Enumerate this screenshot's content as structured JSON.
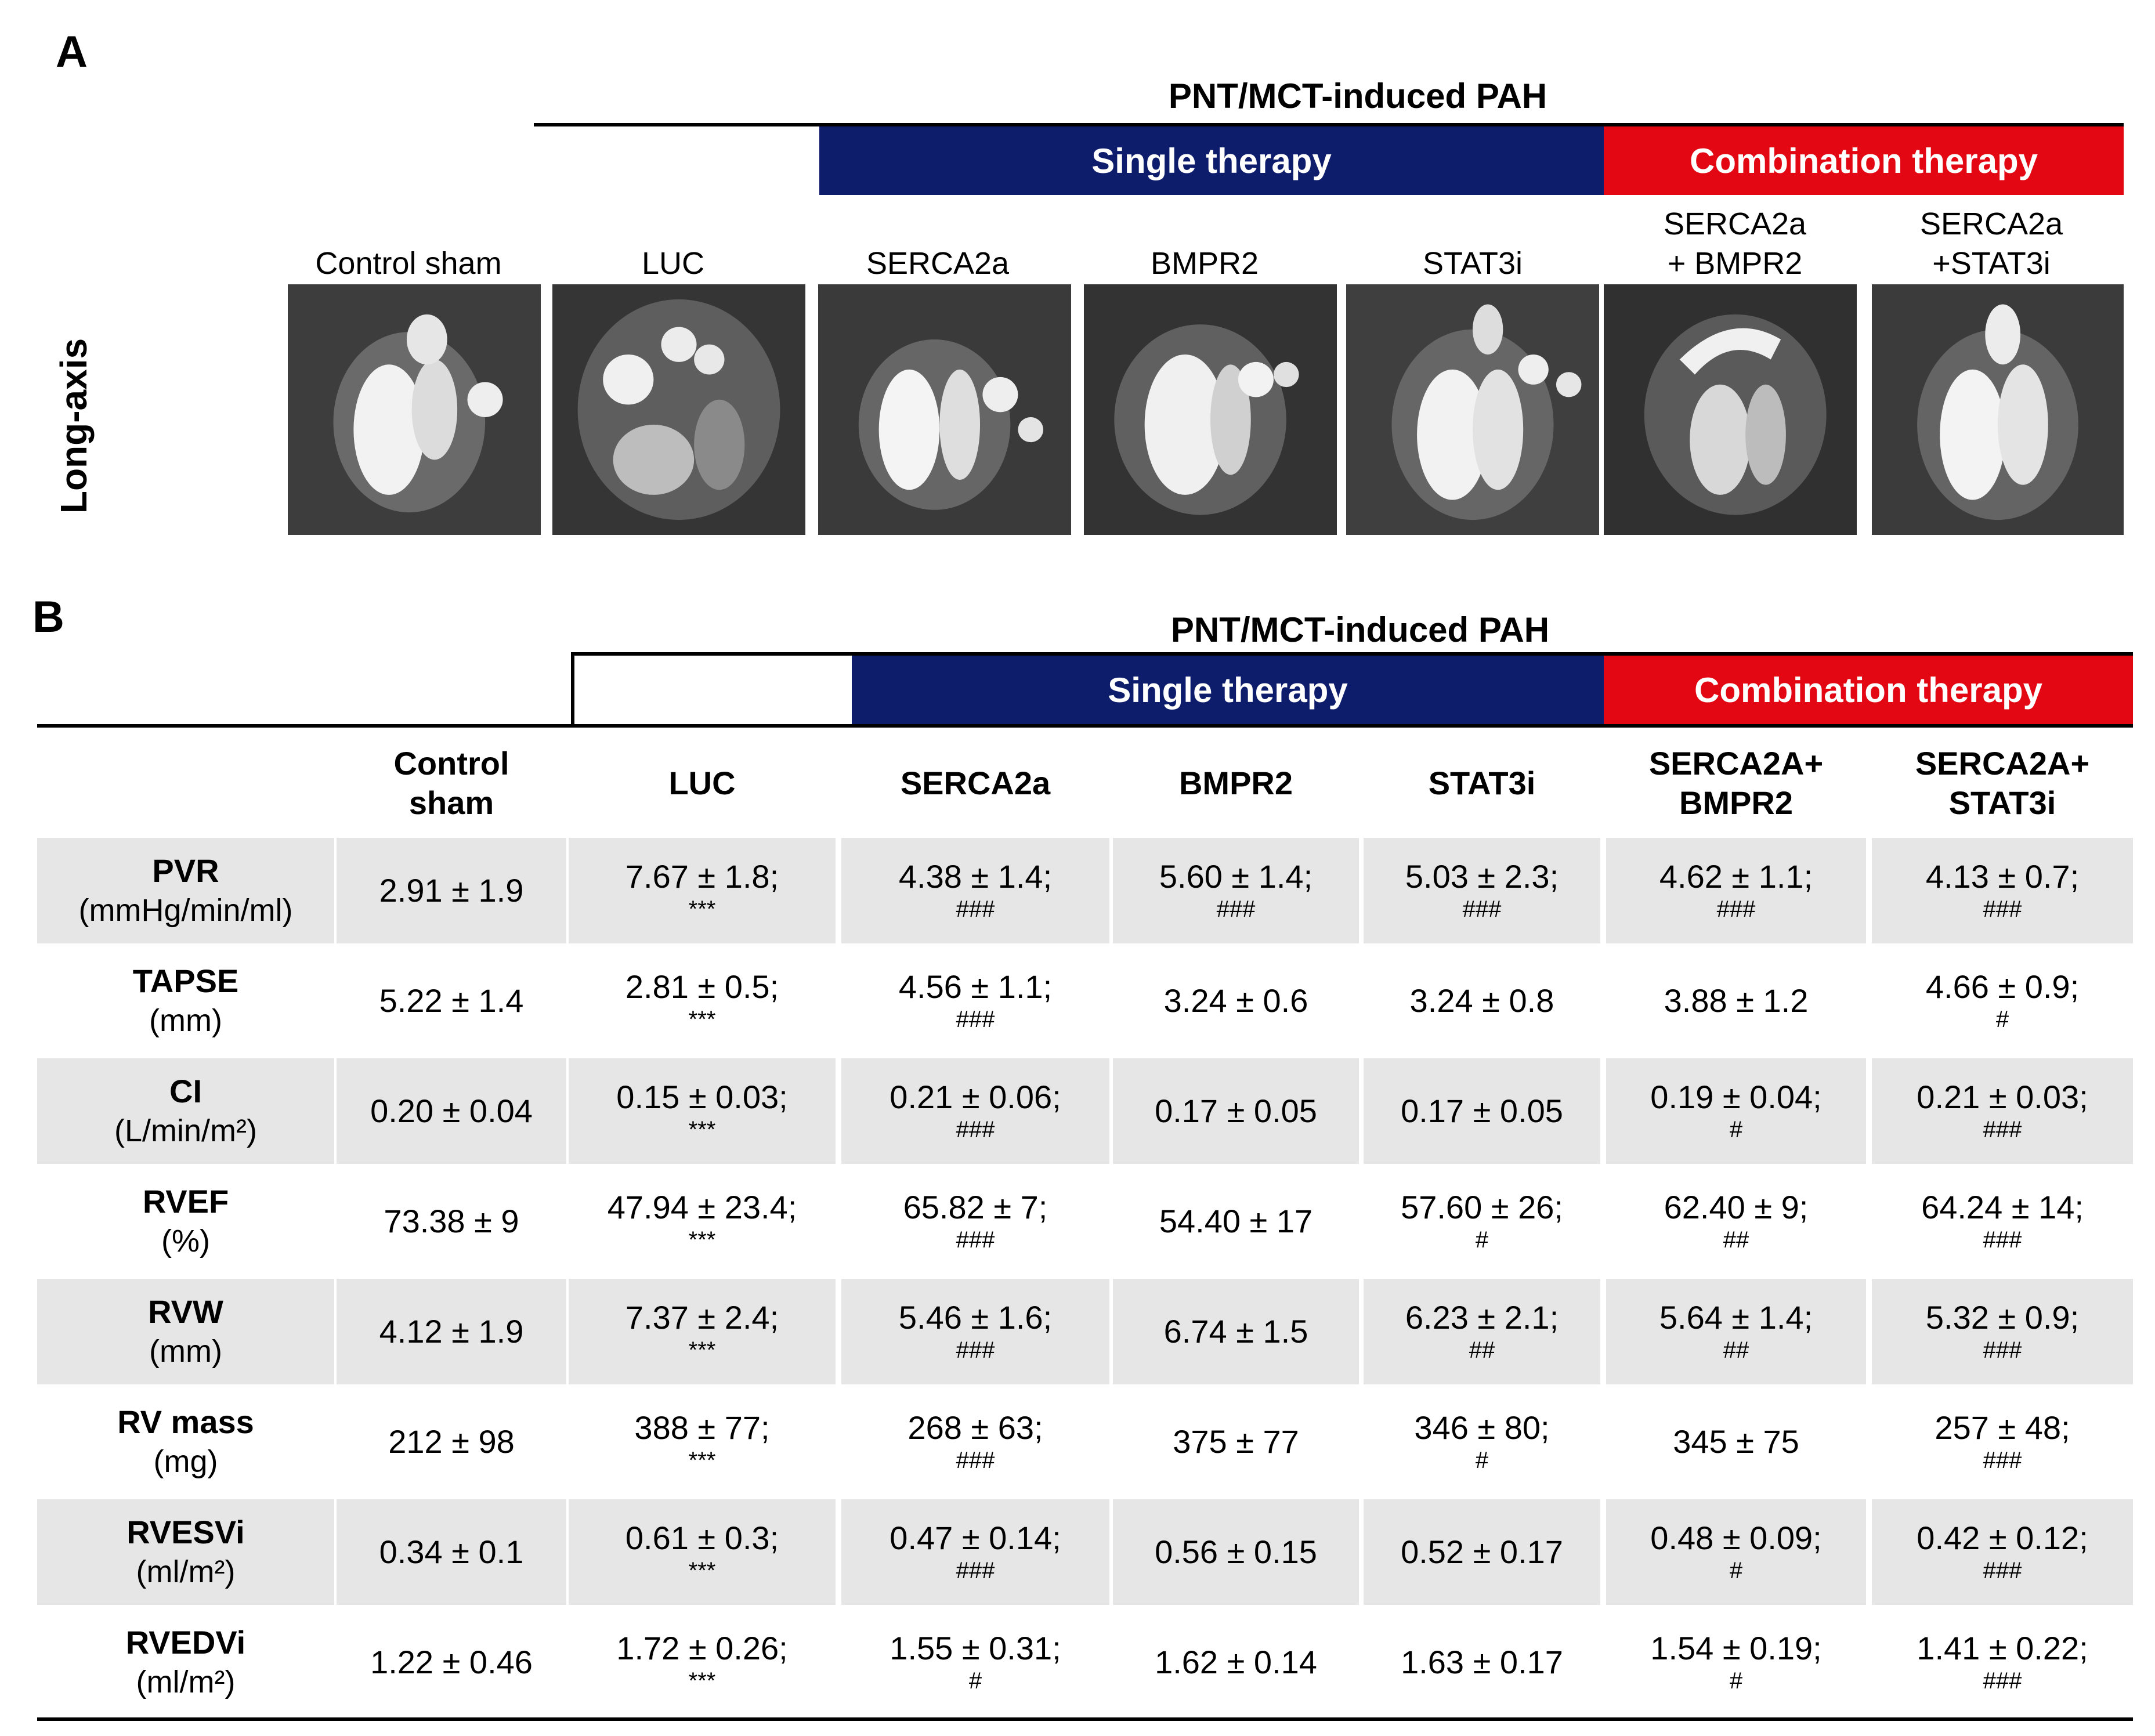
{
  "panel_a": {
    "letter": "A",
    "group_title": "PNT/MCT-induced PAH",
    "single_label": "Single therapy",
    "combo_label": "Combination therapy",
    "side_label": "Long-axis",
    "images": [
      {
        "label1": "",
        "label2": "Control sham"
      },
      {
        "label1": "",
        "label2": "LUC"
      },
      {
        "label1": "",
        "label2": "SERCA2a"
      },
      {
        "label1": "",
        "label2": "BMPR2"
      },
      {
        "label1": "",
        "label2": "STAT3i"
      },
      {
        "label1": "SERCA2a",
        "label2": "+ BMPR2"
      },
      {
        "label1": "SERCA2a",
        "label2": "+STAT3i"
      }
    ]
  },
  "panel_b": {
    "letter": "B",
    "group_title": "PNT/MCT-induced PAH",
    "single_label": "Single therapy",
    "combo_label": "Combination therapy",
    "columns": [
      {
        "line1": "Control",
        "line2": "sham"
      },
      {
        "line1": "LUC",
        "line2": ""
      },
      {
        "line1": "SERCA2a",
        "line2": ""
      },
      {
        "line1": "BMPR2",
        "line2": ""
      },
      {
        "line1": "STAT3i",
        "line2": ""
      },
      {
        "line1": "SERCA2A+",
        "line2": "BMPR2"
      },
      {
        "line1": "SERCA2A+",
        "line2": "STAT3i"
      }
    ],
    "rows": [
      {
        "name": "PVR",
        "unit": "(mmHg/min/ml)",
        "cells": [
          {
            "v": "2.91 ± 1.9",
            "s": ""
          },
          {
            "v": "7.67 ± 1.8;",
            "s": "***"
          },
          {
            "v": "4.38 ± 1.4;",
            "s": "###"
          },
          {
            "v": "5.60 ± 1.4;",
            "s": "###"
          },
          {
            "v": "5.03 ± 2.3;",
            "s": "###"
          },
          {
            "v": "4.62 ± 1.1;",
            "s": "###"
          },
          {
            "v": "4.13 ± 0.7;",
            "s": "###"
          }
        ]
      },
      {
        "name": "TAPSE",
        "unit": "(mm)",
        "cells": [
          {
            "v": "5.22 ± 1.4",
            "s": ""
          },
          {
            "v": "2.81 ± 0.5;",
            "s": "***"
          },
          {
            "v": "4.56 ± 1.1;",
            "s": "###"
          },
          {
            "v": "3.24 ± 0.6",
            "s": ""
          },
          {
            "v": "3.24 ± 0.8",
            "s": ""
          },
          {
            "v": "3.88 ±  1.2",
            "s": ""
          },
          {
            "v": "4.66 ± 0.9;",
            "s": "#"
          }
        ]
      },
      {
        "name": "CI",
        "unit": "(L/min/m²)",
        "cells": [
          {
            "v": "0.20 ± 0.04",
            "s": ""
          },
          {
            "v": "0.15 ± 0.03;",
            "s": "***"
          },
          {
            "v": "0.21 ± 0.06;",
            "s": "###"
          },
          {
            "v": "0.17 ± 0.05",
            "s": ""
          },
          {
            "v": "0.17 ± 0.05",
            "s": ""
          },
          {
            "v": "0.19 ± 0.04;",
            "s": "#"
          },
          {
            "v": "0.21 ± 0.03;",
            "s": "###"
          }
        ]
      },
      {
        "name": "RVEF",
        "unit": "(%)",
        "cells": [
          {
            "v": "73.38 ± 9",
            "s": ""
          },
          {
            "v": "47.94 ± 23.4;",
            "s": "***"
          },
          {
            "v": "65.82 ± 7;",
            "s": "###"
          },
          {
            "v": "54.40 ± 17",
            "s": ""
          },
          {
            "v": "57.60 ± 26;",
            "s": "#"
          },
          {
            "v": "62.40 ± 9;",
            "s": "##"
          },
          {
            "v": "64.24 ± 14;",
            "s": "###"
          }
        ]
      },
      {
        "name": "RVW",
        "unit": "(mm)",
        "cells": [
          {
            "v": "4.12 ± 1.9",
            "s": ""
          },
          {
            "v": "7.37 ± 2.4;",
            "s": "***"
          },
          {
            "v": "5.46 ± 1.6;",
            "s": "###"
          },
          {
            "v": "6.74 ± 1.5",
            "s": ""
          },
          {
            "v": "6.23 ± 2.1;",
            "s": "##"
          },
          {
            "v": "5.64 ± 1.4;",
            "s": "##"
          },
          {
            "v": "5.32 ± 0.9;",
            "s": "###"
          }
        ]
      },
      {
        "name": "RV mass",
        "unit": "(mg)",
        "cells": [
          {
            "v": "212 ± 98",
            "s": ""
          },
          {
            "v": "388 ± 77;",
            "s": "***"
          },
          {
            "v": "268 ± 63;",
            "s": "###"
          },
          {
            "v": "375 ± 77",
            "s": ""
          },
          {
            "v": "346 ± 80;",
            "s": "#"
          },
          {
            "v": "345 ± 75",
            "s": ""
          },
          {
            "v": "257 ± 48;",
            "s": "###"
          }
        ]
      },
      {
        "name": "RVESVi",
        "unit": "(ml/m²)",
        "cells": [
          {
            "v": "0.34 ± 0.1",
            "s": ""
          },
          {
            "v": "0.61 ± 0.3;",
            "s": "***"
          },
          {
            "v": "0.47 ± 0.14;",
            "s": "###"
          },
          {
            "v": "0.56 ± 0.15",
            "s": ""
          },
          {
            "v": "0.52 ± 0.17",
            "s": ""
          },
          {
            "v": "0.48 ± 0.09;",
            "s": "#"
          },
          {
            "v": "0.42 ± 0.12;",
            "s": "###"
          }
        ]
      },
      {
        "name": "RVEDVi",
        "unit": "(ml/m²)",
        "cells": [
          {
            "v": "1.22 ± 0.46",
            "s": ""
          },
          {
            "v": "1.72 ± 0.26;",
            "s": "***"
          },
          {
            "v": "1.55 ± 0.31;",
            "s": "#"
          },
          {
            "v": "1.62 ± 0.14",
            "s": ""
          },
          {
            "v": "1.63 ± 0.17",
            "s": ""
          },
          {
            "v": "1.54 ± 0.19;",
            "s": "#"
          },
          {
            "v": "1.41 ± 0.22;",
            "s": "###"
          }
        ]
      }
    ]
  }
}
